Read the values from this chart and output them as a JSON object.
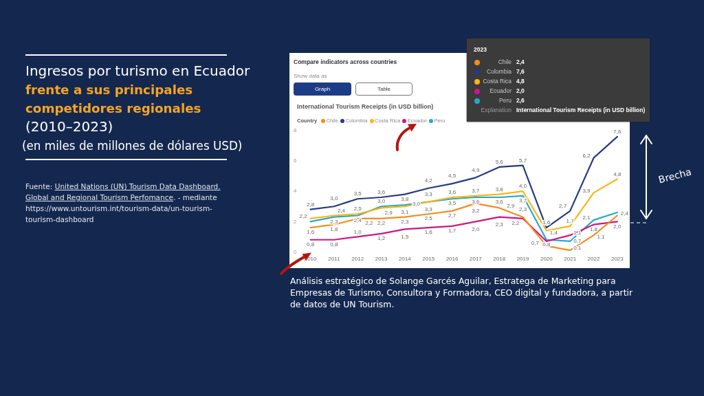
{
  "chart_data": {
    "type": "line",
    "title": "Ingresos por turismo en Ecuador frente a sus principales competidores regionales (2010–2023)",
    "subtitle": "(en miles de millones de dólares USD)",
    "legend_title": "Country",
    "categories": [
      "2010",
      "2011",
      "2012",
      "2013",
      "2014",
      "2015",
      "2016",
      "2017",
      "2018",
      "2019",
      "2020",
      "2021",
      "2022",
      "2023"
    ],
    "series": [
      {
        "name": "Chile",
        "color": "#f68b1f",
        "values": [
          1.6,
          1.8,
          2.2,
          2.2,
          2.3,
          2.5,
          2.7,
          3.2,
          2.9,
          2.3,
          0.4,
          0.1,
          1.1,
          2.4
        ],
        "value_labels": [
          "1,6",
          "1,8",
          "2,2",
          "2,2",
          "2,3",
          "2,5",
          "2,7",
          "3,2",
          "2,9",
          "2,3",
          null,
          "0,1",
          "1,1",
          "2,4"
        ]
      },
      {
        "name": "Colombia",
        "color": "#243a85",
        "values": [
          2.8,
          3.0,
          3.5,
          3.6,
          3.8,
          4.2,
          4.5,
          4.9,
          5.6,
          5.7,
          1.6,
          2.7,
          6.2,
          7.6
        ],
        "value_labels": [
          "2,8",
          "3,0",
          "3,5",
          "3,6",
          "3,8",
          "4,2",
          "4,5",
          "4,9",
          "5,6",
          "5,7",
          "1,6",
          "2,7",
          "6,2",
          "7,6"
        ]
      },
      {
        "name": "Costa Rica",
        "color": "#fdb515",
        "values": [
          2.2,
          2.4,
          2.5,
          2.9,
          3.0,
          3.3,
          3.6,
          3.7,
          3.8,
          4.0,
          1.4,
          1.7,
          3.9,
          4.8
        ],
        "value_labels": [
          "2,2",
          "2,4",
          "2,5",
          "2,9",
          "3,0",
          "3,3",
          "3,6",
          "3,7",
          "3,8",
          "4,0",
          "1,4",
          "1,7",
          "3,9",
          "4,8"
        ]
      },
      {
        "name": "Ecuador",
        "color": "#cf1585",
        "values": [
          0.8,
          0.8,
          1.0,
          1.2,
          1.5,
          1.6,
          1.7,
          2.0,
          2.3,
          2.2,
          0.7,
          1.1,
          1.8,
          2.0
        ],
        "value_labels": [
          "0,8",
          "0,8",
          "1,0",
          "1,2",
          "1,5",
          "1,6",
          "1,7",
          "2,0",
          "2,3",
          "2,2",
          "0,7",
          "1,1",
          "1,8",
          "2,0"
        ]
      },
      {
        "name": "Peru",
        "color": "#27a8c8",
        "values": [
          2.0,
          2.3,
          2.4,
          3.0,
          3.1,
          3.3,
          3.5,
          3.6,
          3.6,
          3.7,
          0.8,
          0.7,
          2.1,
          2.6
        ],
        "value_labels": [
          null,
          "2,3",
          "2,4",
          "3,0",
          "3,1",
          "3,3",
          "3,5",
          "3,6",
          "3,6",
          "3,7",
          "0,8",
          "0,7",
          "2,1",
          null
        ]
      }
    ],
    "ylim": [
      0,
      8
    ],
    "yticks": [
      0,
      2,
      4,
      6,
      8
    ],
    "legend": "top left",
    "marker": "none",
    "annotations": [
      "Fuente:",
      "United Nations (UN) Tourism Data Dashboard.",
      "Global and Regional Tourism Perfomance",
      ". - mediante",
      "https://www.untourism.int/tourism-data/un-tourism-tourism-dashboard",
      "Compare indicators across countries",
      "Show data as",
      "Graph",
      "Table",
      "International Tourism Receipts (in USD billion)",
      "Explanation",
      "Brecha",
      "Análisis estratégico de Solange Garcés Aguilar, Estratega de Marketing para Empresas de Turismo, Consultora y Formadora, CEO digital y fundadora, a partir de datos de UN Tourism.",
      "2,4",
      "7,6",
      "4,8",
      "2,0",
      "2,6"
    ]
  }
}
